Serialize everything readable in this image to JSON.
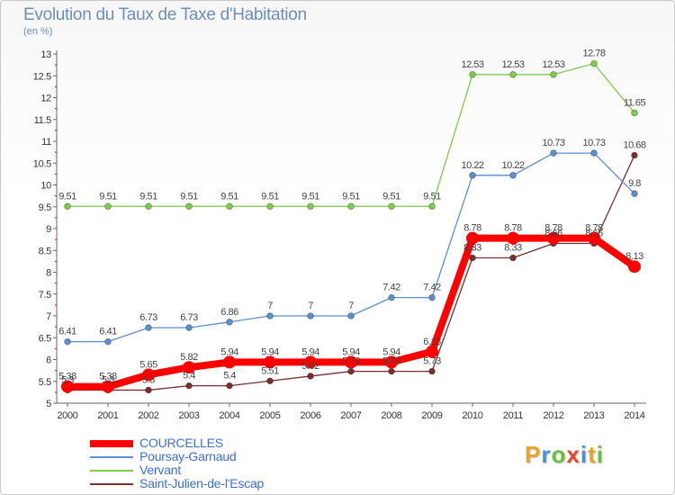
{
  "header": {
    "title": "Evolution du Taux de Taxe d'Habitation",
    "unit": "(en %)"
  },
  "logo": {
    "letters": [
      "P",
      "r",
      "o",
      "x",
      "i",
      "t",
      "i"
    ],
    "colors": [
      "#e8a42a",
      "#4a90d9",
      "#6cbf3a",
      "#e04b2a",
      "#4a90d9",
      "#e8a42a",
      "#6cbf3a"
    ]
  },
  "chart_data": {
    "type": "line",
    "x": [
      "2000",
      "2001",
      "2002",
      "2003",
      "2004",
      "2005",
      "2006",
      "2007",
      "2008",
      "2009",
      "2010",
      "2011",
      "2012",
      "2013",
      "2014"
    ],
    "ylim": [
      5,
      13
    ],
    "yticks": [
      "5",
      "5.5",
      "6",
      "6.5",
      "7",
      "7.5",
      "8",
      "8.5",
      "9",
      "9.5",
      "10",
      "10.5",
      "11",
      "11.5",
      "12",
      "12.5",
      "13"
    ],
    "grid": false,
    "legend_position": "bottom-left",
    "series": [
      {
        "name": "COURCELLES",
        "color": "#ff0000",
        "values": [
          5.38,
          5.38,
          5.65,
          5.82,
          5.94,
          5.94,
          5.94,
          5.94,
          5.94,
          6.18,
          8.78,
          8.78,
          8.78,
          8.78,
          8.13
        ],
        "labels": [
          "5.38",
          "5.38",
          "5.65",
          "5.82",
          "5.94",
          "5.94",
          "5.94",
          "5.94",
          "5.94",
          "6.18",
          "8.78",
          "8.78",
          "8.78",
          "8.78",
          "8.13"
        ]
      },
      {
        "name": "Poursay-Garnaud",
        "color": "#5b8fd0",
        "values": [
          6.41,
          6.41,
          6.73,
          6.73,
          6.86,
          7,
          7,
          7,
          7.42,
          7.42,
          10.22,
          10.22,
          10.73,
          10.73,
          9.8
        ],
        "labels": [
          "6.41",
          "6.41",
          "6.73",
          "6.73",
          "6.86",
          "7",
          "7",
          "7",
          "7.42",
          "7.42",
          "10.22",
          "10.22",
          "10.73",
          "10.73",
          "9.8"
        ]
      },
      {
        "name": "Vervant",
        "color": "#7dcc4a",
        "values": [
          9.51,
          9.51,
          9.51,
          9.51,
          9.51,
          9.51,
          9.51,
          9.51,
          9.51,
          9.51,
          12.53,
          12.53,
          12.53,
          12.78,
          11.65
        ],
        "labels": [
          "9.51",
          "9.51",
          "9.51",
          "9.51",
          "9.51",
          "9.51",
          "9.51",
          "9.51",
          "9.51",
          "9.51",
          "12.53",
          "12.53",
          "12.53",
          "12.78",
          "11.65"
        ]
      },
      {
        "name": "Saint-Julien-de-l'Escap",
        "color": "#7a2e2e",
        "values": [
          5.3,
          5.3,
          5.3,
          5.4,
          5.4,
          5.51,
          5.62,
          5.73,
          5.73,
          5.73,
          8.33,
          8.33,
          8.66,
          8.66,
          10.68
        ],
        "labels": [
          "5.3",
          "5.3",
          "5.3",
          "5.4",
          "5.4",
          "5.51",
          "5.62",
          "5.73",
          "5.73",
          "5.73",
          "8.33",
          "8.33",
          "8.66",
          "8.66",
          "10.68"
        ]
      }
    ]
  }
}
